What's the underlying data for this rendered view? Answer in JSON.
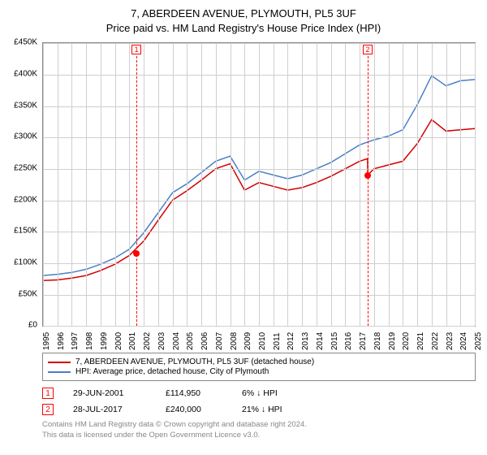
{
  "title": {
    "line1": "7, ABERDEEN AVENUE, PLYMOUTH, PL5 3UF",
    "line2": "Price paid vs. HM Land Registry's House Price Index (HPI)"
  },
  "chart": {
    "type": "line",
    "background_color": "#ffffff",
    "grid_color": "#cfcfcf",
    "title_fontsize": 13,
    "tick_fontsize": 10,
    "x": {
      "min": 1995,
      "max": 2025,
      "ticks": [
        1995,
        1996,
        1997,
        1998,
        1999,
        2000,
        2001,
        2002,
        2003,
        2004,
        2005,
        2006,
        2007,
        2008,
        2009,
        2010,
        2011,
        2012,
        2013,
        2014,
        2015,
        2016,
        2017,
        2018,
        2019,
        2020,
        2021,
        2022,
        2023,
        2024,
        2025
      ]
    },
    "y": {
      "min": 0,
      "max": 450000,
      "tick_step": 50000,
      "tick_labels": [
        "£0",
        "£50K",
        "£100K",
        "£150K",
        "£200K",
        "£250K",
        "£300K",
        "£350K",
        "£400K",
        "£450K"
      ]
    },
    "series": [
      {
        "name": "7, ABERDEEN AVENUE, PLYMOUTH, PL5 3UF (detached house)",
        "color": "#d40000",
        "line_width": 1.5,
        "points_year": [
          1995,
          1996,
          1997,
          1998,
          1999,
          2000,
          2001,
          2002,
          2003,
          2004,
          2005,
          2006,
          2007,
          2008,
          2009,
          2010,
          2011,
          2012,
          2013,
          2014,
          2015,
          2016,
          2017,
          2017.55,
          2017.56,
          2018,
          2019,
          2020,
          2021,
          2022,
          2023,
          2024,
          2025
        ],
        "points_value": [
          72000,
          73000,
          76000,
          80000,
          88000,
          98000,
          112000,
          135000,
          168000,
          200000,
          215000,
          232000,
          250000,
          258000,
          216000,
          228000,
          222000,
          216000,
          220000,
          228000,
          238000,
          250000,
          262000,
          266000,
          240000,
          250000,
          256000,
          262000,
          290000,
          328000,
          310000,
          312000,
          314000
        ]
      },
      {
        "name": "HPI: Average price, detached house, City of Plymouth",
        "color": "#4a7fc7",
        "line_width": 1.5,
        "points_year": [
          1995,
          1996,
          1997,
          1998,
          1999,
          2000,
          2001,
          2002,
          2003,
          2004,
          2005,
          2006,
          2007,
          2008,
          2009,
          2010,
          2011,
          2012,
          2013,
          2014,
          2015,
          2016,
          2017,
          2018,
          2019,
          2020,
          2021,
          2022,
          2023,
          2024,
          2025
        ],
        "points_value": [
          80000,
          82000,
          85000,
          90000,
          98000,
          108000,
          122000,
          148000,
          180000,
          212000,
          226000,
          244000,
          262000,
          270000,
          232000,
          246000,
          240000,
          234000,
          240000,
          250000,
          260000,
          274000,
          288000,
          296000,
          302000,
          312000,
          352000,
          398000,
          382000,
          390000,
          392000
        ]
      }
    ],
    "markers": [
      {
        "id": "1",
        "year": 2001.49,
        "value": 114950
      },
      {
        "id": "2",
        "year": 2017.56,
        "value": 240000
      }
    ]
  },
  "legend": {
    "items": [
      {
        "label": "7, ABERDEEN AVENUE, PLYMOUTH, PL5 3UF (detached house)",
        "color": "#d40000"
      },
      {
        "label": "HPI: Average price, detached house, City of Plymouth",
        "color": "#4a7fc7"
      }
    ]
  },
  "transactions": [
    {
      "id": "1",
      "date": "29-JUN-2001",
      "price": "£114,950",
      "delta": "6% ↓ HPI"
    },
    {
      "id": "2",
      "date": "28-JUL-2017",
      "price": "£240,000",
      "delta": "21% ↓ HPI"
    }
  ],
  "footer": {
    "line1": "Contains HM Land Registry data © Crown copyright and database right 2024.",
    "line2": "This data is licensed under the Open Government Licence v3.0."
  }
}
